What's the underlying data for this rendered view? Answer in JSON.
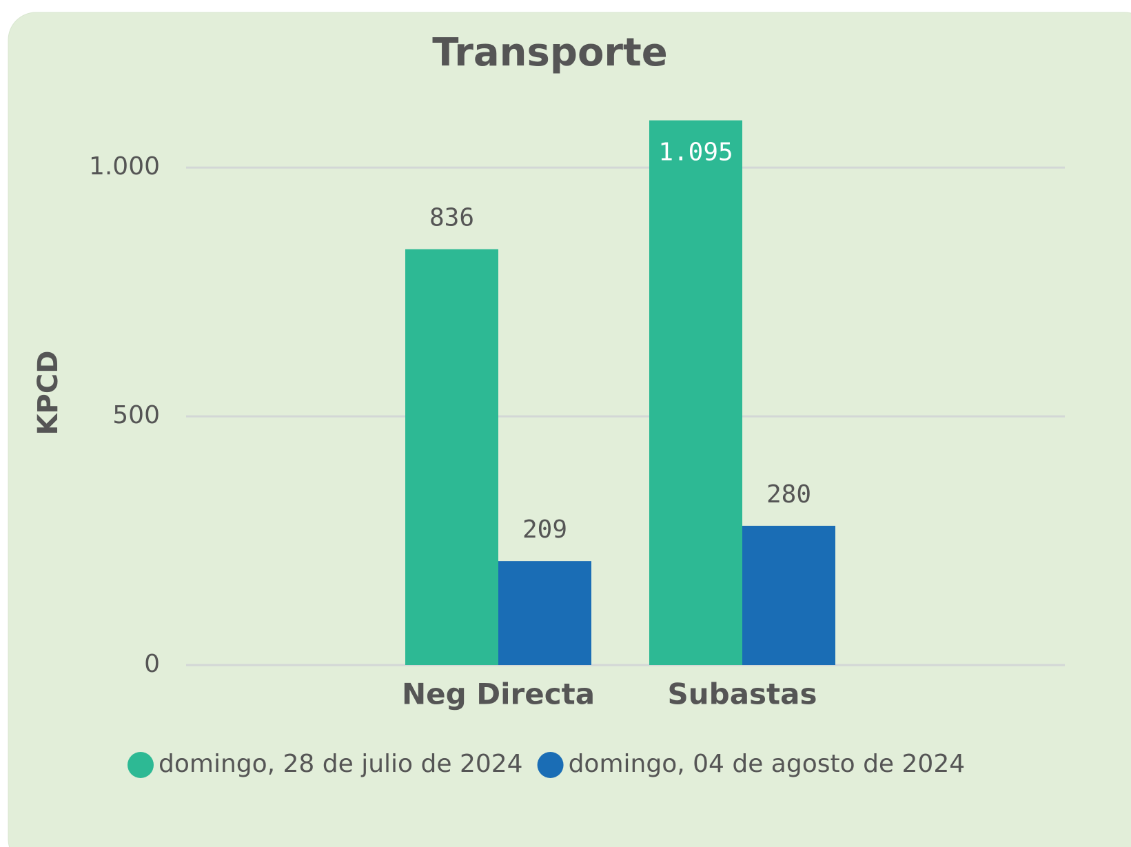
{
  "chart_data": {
    "type": "bar",
    "title": "Transporte",
    "y_label": "KPCD",
    "categories": [
      "Neg Directa",
      "Subastas"
    ],
    "series": [
      {
        "name": "domingo, 28 de julio de 2024",
        "color": "#2db994",
        "values": [
          836,
          1095
        ],
        "value_labels": [
          "836",
          "1.095"
        ]
      },
      {
        "name": "domingo, 04 de agosto de 2024",
        "color": "#1a6db5",
        "values": [
          209,
          280
        ]
      }
    ],
    "ylim": [
      0,
      1100
    ],
    "yticks": [
      0,
      500,
      {
        "value": 1000,
        "label": "1.000"
      }
    ],
    "grid": true,
    "legend": "bottom"
  }
}
